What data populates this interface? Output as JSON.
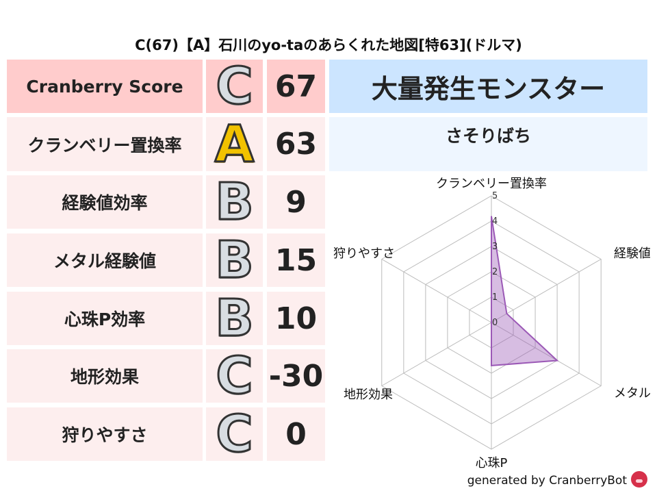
{
  "title": "C(67)【A】石川のyo-taのあらくれた地図[特63](ドルマ)",
  "rows": [
    {
      "label": "Cranberry Score",
      "grade": "C",
      "value": "67"
    },
    {
      "label": "クランベリー置換率",
      "grade": "A",
      "value": "63"
    },
    {
      "label": "経験値効率",
      "grade": "B",
      "value": "9"
    },
    {
      "label": "メタル経験値",
      "grade": "B",
      "value": "15"
    },
    {
      "label": "心珠P効率",
      "grade": "B",
      "value": "10"
    },
    {
      "label": "地形効果",
      "grade": "C",
      "value": "-30"
    },
    {
      "label": "狩りやすさ",
      "grade": "C",
      "value": "0"
    }
  ],
  "monster": {
    "header": "大量発生モンスター",
    "name": "さそりばち"
  },
  "colors": {
    "header_pink": "#ffcccc",
    "row_pink": "#fdeeee",
    "header_blue": "#cce5ff",
    "sub_blue": "#eef6ff",
    "radar_fill": "#9b59b6"
  },
  "chart_data": {
    "type": "radar",
    "axes": [
      "クランベリー置換率",
      "経験値",
      "メタル",
      "心珠P",
      "地形効果",
      "狩りやすさ"
    ],
    "values": [
      4.2,
      0.7,
      3.0,
      1.7,
      0,
      0
    ],
    "ticks": [
      "0",
      "1",
      "2",
      "3",
      "4",
      "5"
    ],
    "range": [
      0,
      5
    ],
    "grid": true
  },
  "footer": "generated by CranberryBot",
  "footer_icon": "cranberry-bot-icon"
}
